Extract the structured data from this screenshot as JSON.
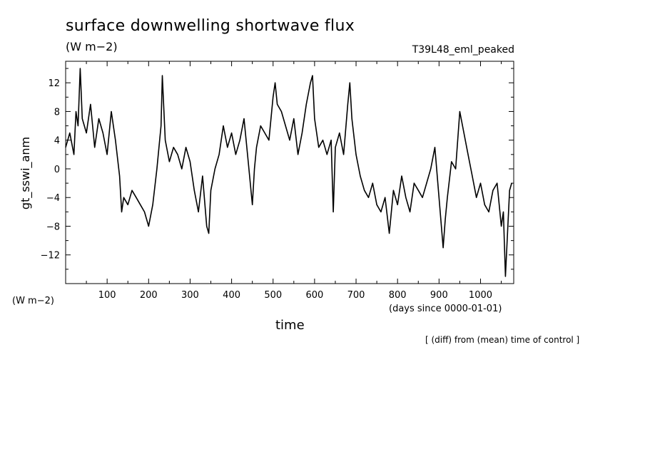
{
  "header": {
    "title": "surface downwelling shortwave flux",
    "units": "(W m−2)",
    "experiment": "T39L48_eml_peaked"
  },
  "left_units": "(W m−2)",
  "x_units": "(days since 0000-01-01)",
  "footnote": "[ (diff) from (mean) time of control ]",
  "chart_data": {
    "type": "line",
    "title": "surface downwelling shortwave flux",
    "xlabel": "time",
    "ylabel": "gt_sswi_anm",
    "xlim": [
      0,
      1080
    ],
    "ylim": [
      -16,
      15
    ],
    "xticks": [
      100,
      200,
      300,
      400,
      500,
      600,
      700,
      800,
      900,
      1000
    ],
    "yticks": [
      12,
      8,
      4,
      0,
      -4,
      -8,
      -12
    ],
    "ytick_labels": [
      "12",
      "8",
      "4",
      "0",
      "−4",
      "−8",
      "−12"
    ],
    "grid": false,
    "line_color": "#000000",
    "series": [
      {
        "x": [
          0,
          10,
          20,
          25,
          30,
          35,
          40,
          50,
          60,
          70,
          80,
          90,
          100,
          110,
          120,
          130,
          135,
          140,
          150,
          160,
          170,
          180,
          190,
          200,
          210,
          220,
          230,
          233,
          240,
          250,
          260,
          270,
          280,
          290,
          300,
          310,
          320,
          330,
          340,
          345,
          350,
          360,
          370,
          380,
          390,
          400,
          410,
          420,
          430,
          440,
          450,
          455,
          460,
          470,
          480,
          490,
          500,
          505,
          510,
          520,
          530,
          540,
          550,
          560,
          570,
          580,
          590,
          595,
          600,
          610,
          620,
          630,
          640,
          645,
          650,
          660,
          670,
          680,
          685,
          690,
          700,
          710,
          720,
          730,
          740,
          750,
          760,
          770,
          780,
          790,
          800,
          810,
          820,
          830,
          840,
          850,
          860,
          870,
          880,
          890,
          900,
          910,
          915,
          920,
          930,
          940,
          950,
          960,
          970,
          980,
          990,
          1000,
          1010,
          1020,
          1030,
          1040,
          1050,
          1055,
          1060,
          1065,
          1070,
          1075
        ],
        "y": [
          3,
          5,
          2,
          8,
          6,
          14,
          7,
          5,
          9,
          3,
          7,
          5,
          2,
          8,
          4,
          -1,
          -6,
          -4,
          -5,
          -3,
          -4,
          -5,
          -6,
          -8,
          -5,
          0,
          6,
          13,
          4,
          1,
          3,
          2,
          0,
          3,
          1,
          -3,
          -6,
          -1,
          -8,
          -9,
          -3,
          0,
          2,
          6,
          3,
          5,
          2,
          4,
          7,
          1,
          -5,
          0,
          3,
          6,
          5,
          4,
          10,
          12,
          9,
          8,
          6,
          4,
          7,
          2,
          5,
          9,
          12,
          13,
          7,
          3,
          4,
          2,
          4,
          -6,
          3,
          5,
          2,
          9,
          12,
          7,
          2,
          -1,
          -3,
          -4,
          -2,
          -5,
          -6,
          -4,
          -9,
          -3,
          -5,
          -1,
          -4,
          -6,
          -2,
          -3,
          -4,
          -2,
          0,
          3,
          -4,
          -11,
          -7,
          -4,
          1,
          0,
          8,
          5,
          2,
          -1,
          -4,
          -2,
          -5,
          -6,
          -3,
          -2,
          -8,
          -6,
          -15,
          -9,
          -3,
          -2
        ]
      }
    ]
  }
}
